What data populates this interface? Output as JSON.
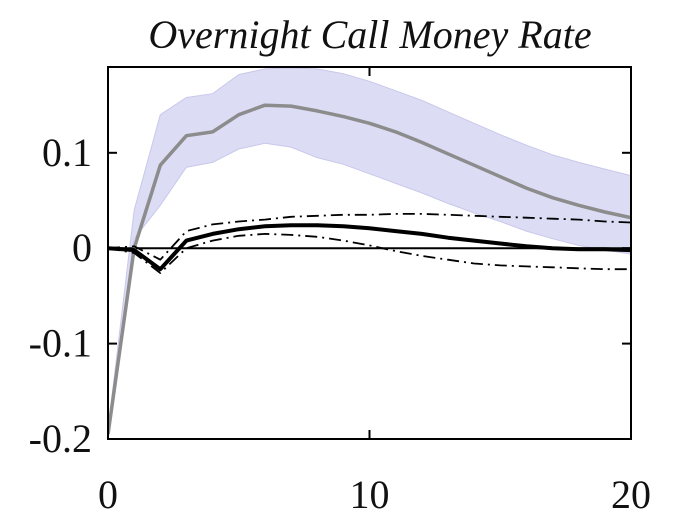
{
  "chart_data": {
    "type": "line",
    "title": "Overnight Call Money Rate",
    "xlabel": "",
    "ylabel": "",
    "xlim": [
      0,
      20
    ],
    "ylim": [
      -0.2,
      0.19
    ],
    "x_ticks": [
      0,
      10,
      20
    ],
    "x_tick_labels": [
      "0",
      "10",
      "20"
    ],
    "y_ticks": [
      -0.2,
      -0.1,
      0,
      0.1
    ],
    "y_tick_labels": [
      "-0.2",
      "-0.1",
      "0",
      "0.1"
    ],
    "grid": false,
    "legend": "none",
    "colors": {
      "band": "#dcdcf5",
      "band_edge": "#c8c8ea",
      "gray_line": "#8c8c8c",
      "black_line": "#000000",
      "zero_line": "#000000"
    },
    "band": {
      "x": [
        0,
        1,
        2,
        3,
        4,
        5,
        6,
        7,
        8,
        9,
        10,
        11,
        12,
        13,
        14,
        15,
        16,
        17,
        18,
        19,
        20
      ],
      "upper": [
        -0.19,
        0.04,
        0.14,
        0.158,
        0.162,
        0.182,
        0.188,
        0.189,
        0.188,
        0.183,
        0.175,
        0.165,
        0.155,
        0.143,
        0.131,
        0.119,
        0.108,
        0.098,
        0.09,
        0.083,
        0.076
      ],
      "lower": [
        -0.2,
        0.01,
        0.045,
        0.085,
        0.09,
        0.104,
        0.11,
        0.106,
        0.095,
        0.088,
        0.078,
        0.068,
        0.058,
        0.047,
        0.037,
        0.028,
        0.018,
        0.01,
        0.003,
        -0.002,
        -0.006
      ]
    },
    "series": [
      {
        "style": "solid-gray",
        "x": [
          0,
          1,
          2,
          3,
          4,
          5,
          6,
          7,
          8,
          9,
          10,
          11,
          12,
          13,
          14,
          15,
          16,
          17,
          18,
          19,
          20
        ],
        "y": [
          -0.195,
          0.0,
          0.087,
          0.118,
          0.122,
          0.14,
          0.15,
          0.149,
          0.144,
          0.138,
          0.131,
          0.122,
          0.111,
          0.099,
          0.087,
          0.075,
          0.063,
          0.053,
          0.045,
          0.038,
          0.032
        ]
      },
      {
        "style": "solid-black",
        "x": [
          0,
          1,
          2,
          3,
          4,
          5,
          6,
          7,
          8,
          9,
          10,
          11,
          12,
          13,
          14,
          15,
          16,
          17,
          18,
          19,
          20
        ],
        "y": [
          0.0,
          -0.002,
          -0.022,
          0.008,
          0.015,
          0.02,
          0.023,
          0.024,
          0.024,
          0.023,
          0.021,
          0.018,
          0.015,
          0.011,
          0.008,
          0.005,
          0.002,
          0.0,
          -0.001,
          -0.001,
          -0.002
        ]
      },
      {
        "style": "dashdot-upper",
        "x": [
          0,
          1,
          2,
          3,
          4,
          5,
          6,
          7,
          8,
          9,
          10,
          11,
          12,
          13,
          14,
          15,
          16,
          17,
          18,
          19,
          20
        ],
        "y": [
          0.0,
          0.002,
          -0.012,
          0.018,
          0.025,
          0.028,
          0.03,
          0.033,
          0.034,
          0.035,
          0.035,
          0.036,
          0.036,
          0.035,
          0.034,
          0.033,
          0.032,
          0.031,
          0.03,
          0.028,
          0.027
        ]
      },
      {
        "style": "dashdot-lower",
        "x": [
          0,
          1,
          2,
          3,
          4,
          5,
          6,
          7,
          8,
          9,
          10,
          11,
          12,
          13,
          14,
          15,
          16,
          17,
          18,
          19,
          20
        ],
        "y": [
          0.0,
          -0.005,
          -0.026,
          0.0,
          0.008,
          0.013,
          0.015,
          0.014,
          0.012,
          0.008,
          0.003,
          -0.003,
          -0.008,
          -0.012,
          -0.016,
          -0.018,
          -0.019,
          -0.02,
          -0.021,
          -0.022,
          -0.022
        ]
      }
    ]
  }
}
